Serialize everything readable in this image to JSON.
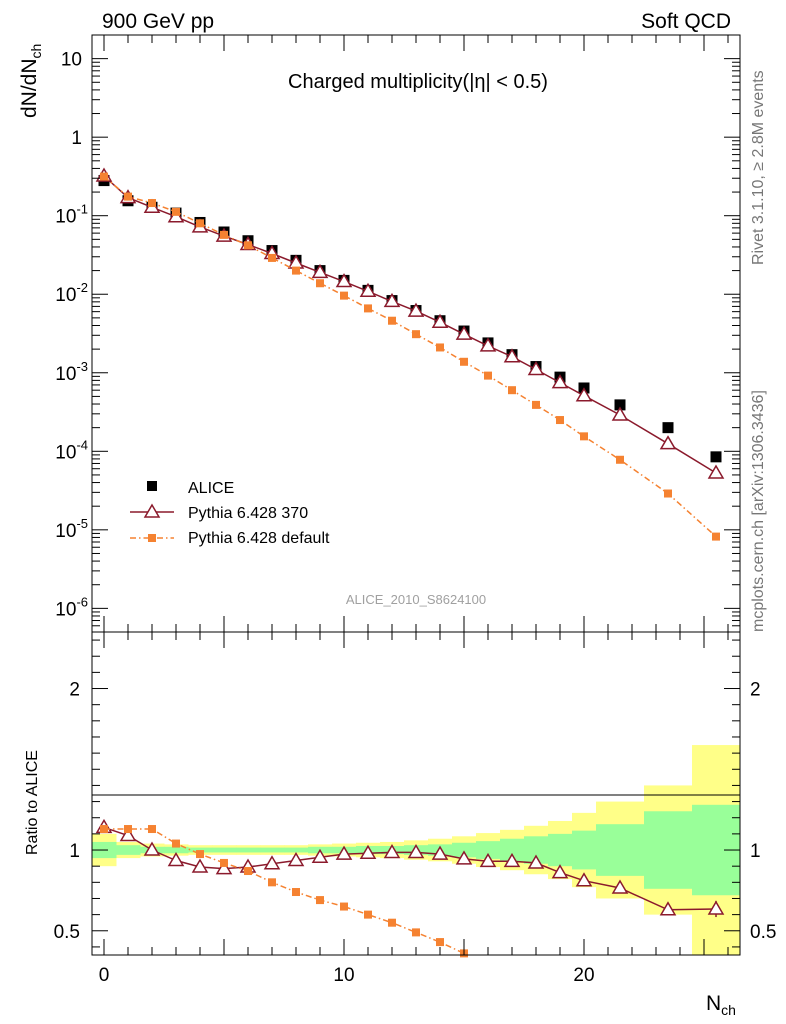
{
  "header": {
    "left": "900 GeV pp",
    "right": "Soft QCD"
  },
  "side": {
    "top": "Rivet 3.1.10, ≥ 2.8M events",
    "bottom": "mcplots.cern.ch [arXiv:1306.3436]"
  },
  "chart_data": [
    {
      "type": "scatter",
      "title": "Charged multiplicity(|η| < 0.5)",
      "ylabel": "dN/dN_ch",
      "watermark": "ALICE_2010_S8624100",
      "yscale": "log",
      "ylim": [
        5e-07,
        20
      ],
      "xlim": [
        -0.5,
        26.5
      ],
      "y_tick_labels": [
        "10",
        "1",
        "10^-1",
        "10^-2",
        "10^-3",
        "10^-4",
        "10^-5",
        "10^-6"
      ],
      "legend_position": "bottom-left",
      "colors": {
        "alice": "#000000",
        "p370": "#8b1a2c",
        "pdef": "#f58231"
      },
      "series": [
        {
          "name": "ALICE",
          "style": "square",
          "x": [
            0,
            1,
            2,
            3,
            4,
            5,
            6,
            7,
            8,
            9,
            10,
            11,
            12,
            13,
            14,
            15,
            16,
            17,
            18,
            19,
            20,
            21.5,
            23.5,
            25.5
          ],
          "y": [
            0.28,
            0.155,
            0.128,
            0.108,
            0.082,
            0.062,
            0.048,
            0.036,
            0.027,
            0.02,
            0.015,
            0.0112,
            0.0083,
            0.0062,
            0.0046,
            0.0034,
            0.0024,
            0.0017,
            0.0012,
            0.00088,
            0.00064,
            0.00039,
            0.0002,
            8.5e-05
          ]
        },
        {
          "name": "Pythia 6.428 370",
          "style": "triangle-line",
          "x": [
            0,
            1,
            2,
            3,
            4,
            5,
            6,
            7,
            8,
            9,
            10,
            11,
            12,
            13,
            14,
            15,
            16,
            17,
            18,
            19,
            20,
            21.5,
            23.5,
            25.5
          ],
          "y": [
            0.32,
            0.17,
            0.128,
            0.097,
            0.072,
            0.055,
            0.043,
            0.033,
            0.025,
            0.019,
            0.0145,
            0.0109,
            0.0081,
            0.0061,
            0.0044,
            0.0031,
            0.0022,
            0.0016,
            0.0011,
            0.00075,
            0.00051,
            0.00029,
            0.000125,
            5.3e-05
          ]
        },
        {
          "name": "Pythia 6.428 default",
          "style": "square-dashdot",
          "x": [
            0,
            1,
            2,
            3,
            4,
            5,
            6,
            7,
            8,
            9,
            10,
            11,
            12,
            13,
            14,
            15,
            16,
            17,
            18,
            19,
            20,
            21.5,
            23.5,
            25.5
          ],
          "y": [
            0.315,
            0.175,
            0.145,
            0.112,
            0.08,
            0.057,
            0.042,
            0.029,
            0.02,
            0.0138,
            0.0096,
            0.0066,
            0.0046,
            0.0031,
            0.0021,
            0.00138,
            0.00092,
            0.0006,
            0.00039,
            0.00025,
            0.000155,
            7.8e-05,
            2.9e-05,
            8.2e-06
          ]
        }
      ]
    },
    {
      "type": "scatter",
      "ylabel": "Ratio to ALICE",
      "xlabel": "N_ch",
      "ylim": [
        0.35,
        2.35
      ],
      "xlim": [
        -0.5,
        26.5
      ],
      "y_tick_labels": [
        "2",
        "1",
        "0.5"
      ],
      "x_tick_labels": [
        "0",
        "10",
        "20"
      ],
      "reference_line": 1,
      "bins": [
        -0.5,
        0.5,
        1.5,
        2.5,
        3.5,
        4.5,
        5.5,
        6.5,
        7.5,
        8.5,
        9.5,
        10.5,
        11.5,
        12.5,
        13.5,
        14.5,
        15.5,
        16.5,
        17.5,
        18.5,
        19.5,
        20.5,
        22.5,
        24.5,
        26.5
      ],
      "band_stat": {
        "color": "#99ff99",
        "lo": [
          0.95,
          0.97,
          0.98,
          0.98,
          0.985,
          0.985,
          0.985,
          0.985,
          0.985,
          0.98,
          0.98,
          0.975,
          0.975,
          0.97,
          0.965,
          0.955,
          0.945,
          0.93,
          0.915,
          0.9,
          0.88,
          0.84,
          0.76,
          0.72
        ],
        "hi": [
          1.05,
          1.03,
          1.02,
          1.02,
          1.015,
          1.015,
          1.015,
          1.015,
          1.015,
          1.02,
          1.02,
          1.025,
          1.025,
          1.03,
          1.035,
          1.045,
          1.055,
          1.07,
          1.085,
          1.1,
          1.12,
          1.16,
          1.24,
          1.28
        ]
      },
      "band_sys": {
        "color": "#ffff88",
        "lo": [
          0.9,
          0.95,
          0.96,
          0.965,
          0.97,
          0.97,
          0.97,
          0.97,
          0.97,
          0.965,
          0.96,
          0.955,
          0.95,
          0.94,
          0.93,
          0.915,
          0.895,
          0.875,
          0.85,
          0.82,
          0.77,
          0.7,
          0.6,
          0.35
        ],
        "hi": [
          1.1,
          1.05,
          1.04,
          1.035,
          1.03,
          1.03,
          1.03,
          1.03,
          1.03,
          1.035,
          1.04,
          1.045,
          1.05,
          1.06,
          1.07,
          1.085,
          1.105,
          1.125,
          1.15,
          1.18,
          1.23,
          1.3,
          1.4,
          1.65
        ]
      },
      "series": [
        {
          "name": "Pythia 6.428 370",
          "style": "triangle-line",
          "x": [
            0,
            1,
            2,
            3,
            4,
            5,
            6,
            7,
            8,
            9,
            10,
            11,
            12,
            13,
            14,
            15,
            16,
            17,
            18,
            19,
            20,
            21.5,
            23.5,
            25.5
          ],
          "y": [
            1.14,
            1.09,
            1.0,
            0.935,
            0.895,
            0.885,
            0.895,
            0.915,
            0.935,
            0.955,
            0.975,
            0.98,
            0.985,
            0.985,
            0.975,
            0.945,
            0.93,
            0.93,
            0.92,
            0.86,
            0.81,
            0.765,
            0.63,
            0.635
          ],
          "err": [
            0,
            0,
            0,
            0,
            0,
            0,
            0,
            0,
            0,
            0,
            0,
            0,
            0,
            0,
            0,
            0,
            0,
            0,
            0,
            0,
            0,
            0.02,
            0.03,
            0.05
          ]
        },
        {
          "name": "Pythia 6.428 default",
          "style": "square-dashdot",
          "x": [
            0,
            1,
            2,
            3,
            4,
            5,
            6,
            7,
            8,
            9,
            10,
            11,
            12,
            13,
            14,
            15
          ],
          "y": [
            1.13,
            1.13,
            1.13,
            1.04,
            0.975,
            0.92,
            0.87,
            0.8,
            0.74,
            0.69,
            0.65,
            0.6,
            0.55,
            0.49,
            0.43,
            0.36
          ]
        }
      ]
    }
  ]
}
